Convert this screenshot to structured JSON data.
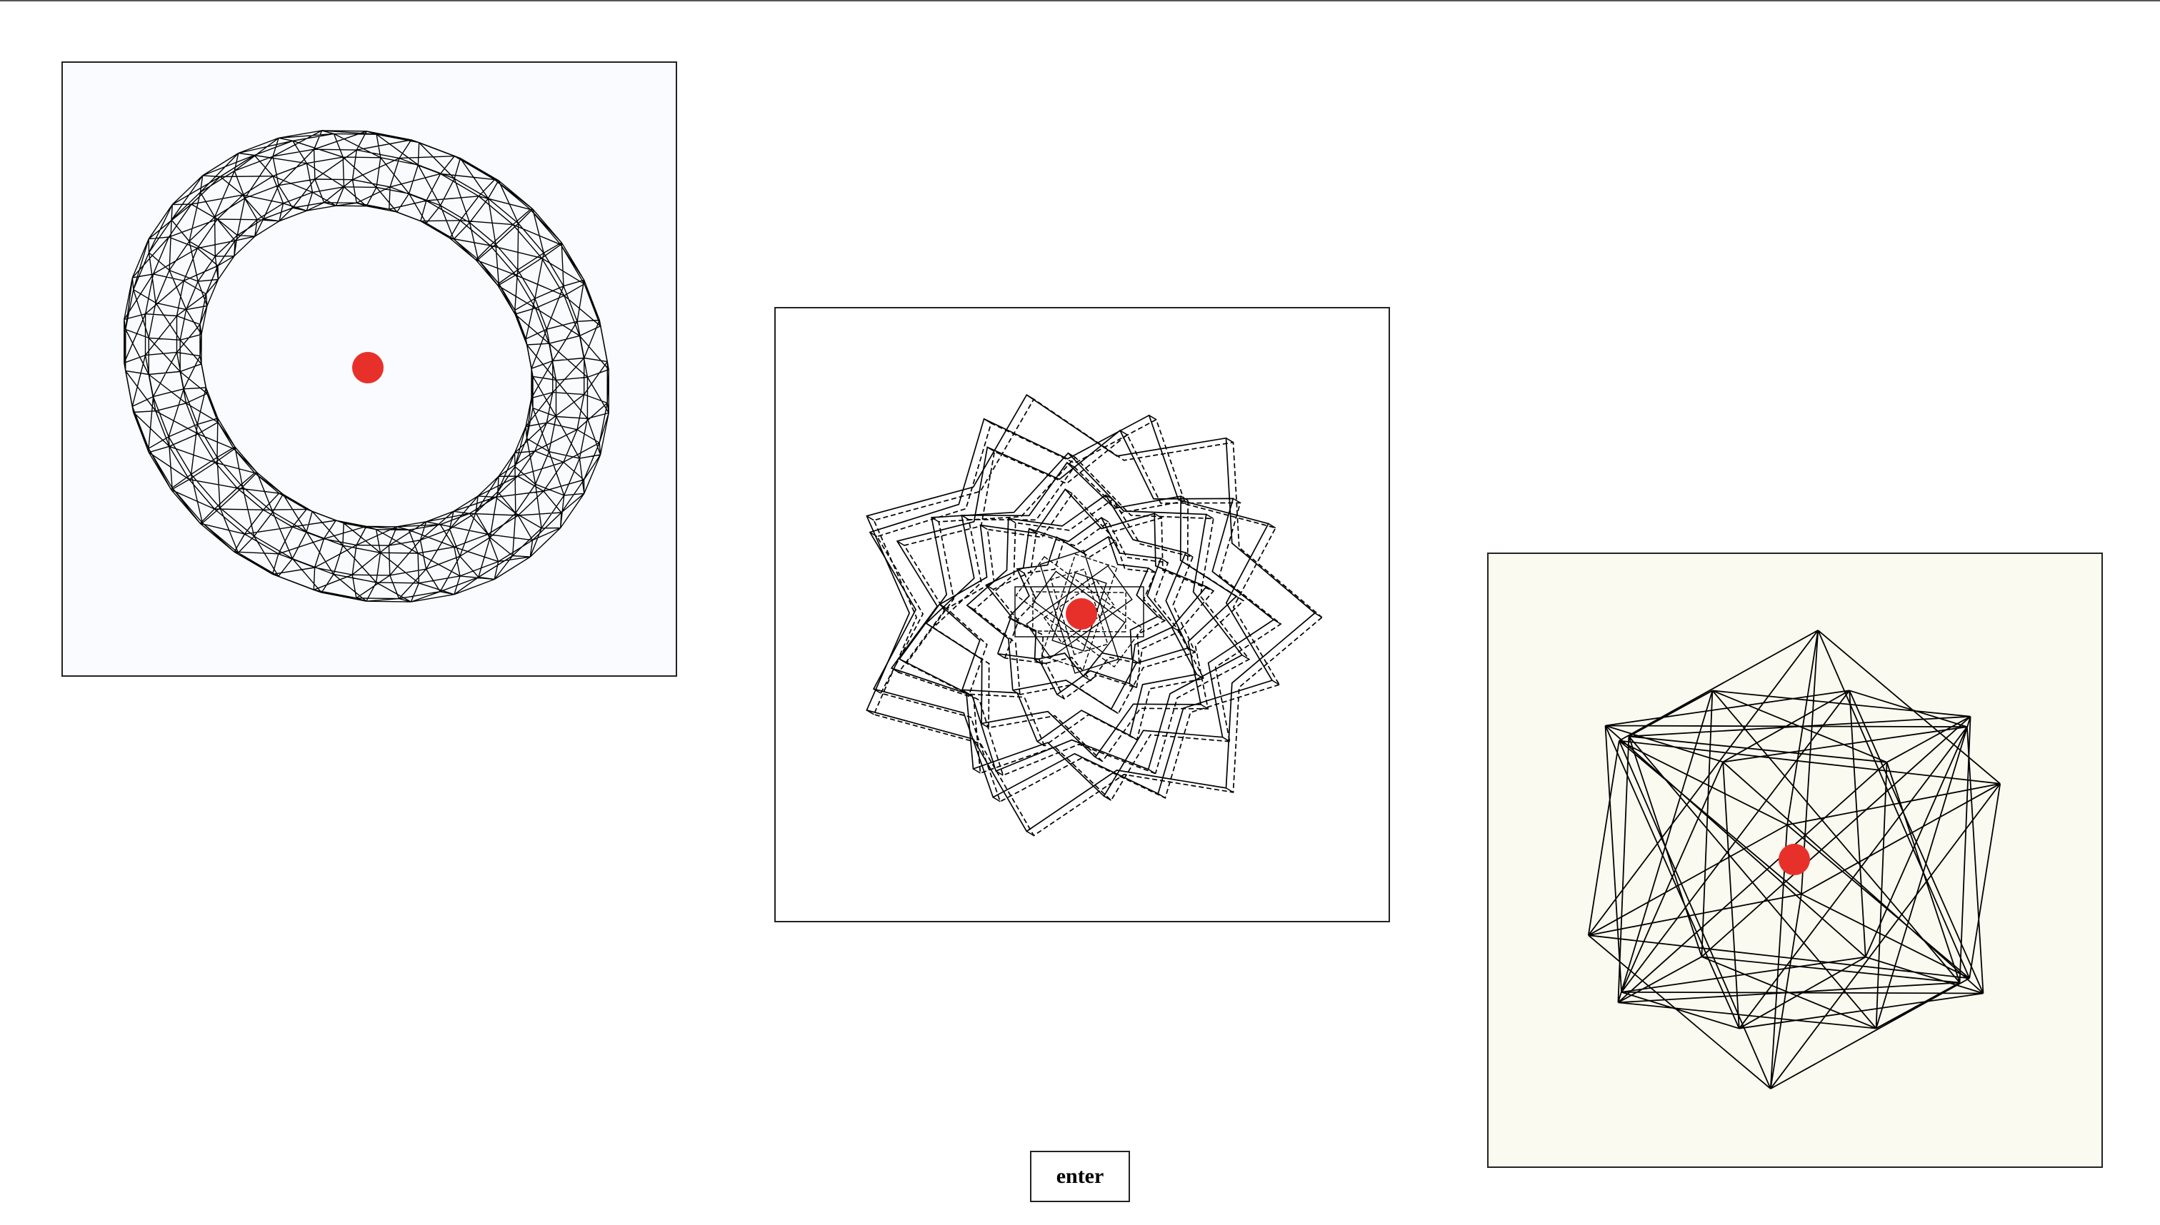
{
  "panels": [
    {
      "id": "torus",
      "kind": "wireframe-torus",
      "background": "#f9fbfe",
      "stroke": "#000000",
      "marker": "#e8302a"
    },
    {
      "id": "stars",
      "kind": "wireframe-star-cluster",
      "background": "#ffffff",
      "stroke": "#000000",
      "marker": "#e8302a"
    },
    {
      "id": "cubes",
      "kind": "wireframe-compound-cubes",
      "background": "#fafaf0",
      "stroke": "#000000",
      "marker": "#e8302a"
    }
  ],
  "controls": {
    "enter_label": "enter"
  },
  "colors": {
    "top_rule": "#555555",
    "border": "#222222",
    "marker": "#e8302a"
  }
}
